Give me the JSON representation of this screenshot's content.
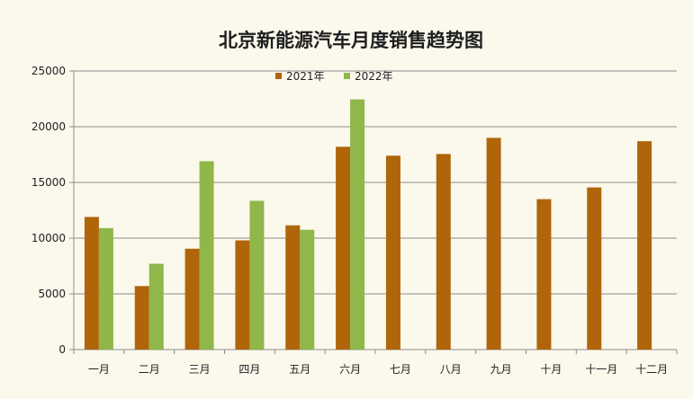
{
  "chart_data": {
    "type": "bar",
    "title": "北京新能源汽车月度销售趋势图",
    "categories": [
      "一月",
      "二月",
      "三月",
      "四月",
      "五月",
      "六月",
      "七月",
      "八月",
      "九月",
      "十月",
      "十一月",
      "十二月"
    ],
    "series": [
      {
        "name": "2021年",
        "color": "#b0650a",
        "values": [
          11900,
          5700,
          9050,
          9800,
          11150,
          18200,
          17400,
          17550,
          19000,
          13500,
          14550,
          18700
        ]
      },
      {
        "name": "2022年",
        "color": "#8fb74a",
        "values": [
          10900,
          7700,
          16900,
          13350,
          10750,
          22450,
          null,
          null,
          null,
          null,
          null,
          null
        ]
      }
    ],
    "ylim": [
      0,
      25000
    ],
    "yticks": [
      0,
      5000,
      10000,
      15000,
      20000,
      25000
    ],
    "grid": true,
    "legend": "top-center",
    "xlabel": "",
    "ylabel": ""
  }
}
